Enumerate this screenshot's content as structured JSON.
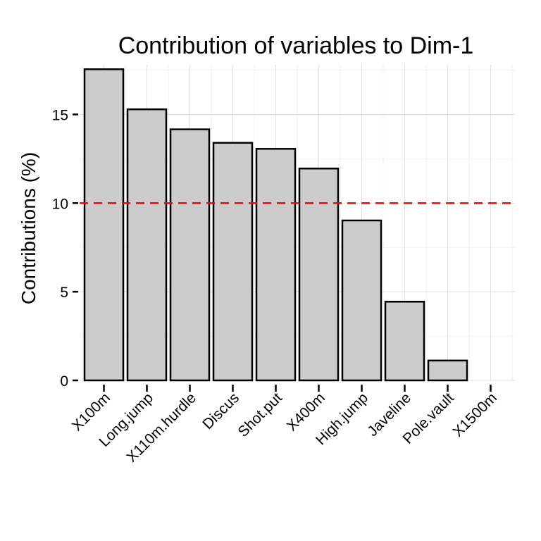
{
  "chart_data": {
    "type": "bar",
    "title": "Contribution of variables to Dim-1",
    "xlabel": "",
    "ylabel": "Contributions (%)",
    "categories": [
      "X100m",
      "Long.jump",
      "X110m.hurdle",
      "Discus",
      "Shot.put",
      "X400m",
      "High.jump",
      "Javeline",
      "Pole.vault",
      "X1500m"
    ],
    "values": [
      17.55,
      15.29,
      14.16,
      13.4,
      13.06,
      11.95,
      9.02,
      4.44,
      1.12,
      0.0
    ],
    "ylim": [
      0,
      17.8
    ],
    "yticks": [
      0,
      5,
      10,
      15
    ],
    "reference_line": {
      "y": 10,
      "style": "dashed"
    },
    "grid": true,
    "colors": {
      "bar_fill": "#cccccc",
      "bar_stroke": "#000000",
      "reference_line": "#ff0000"
    }
  }
}
